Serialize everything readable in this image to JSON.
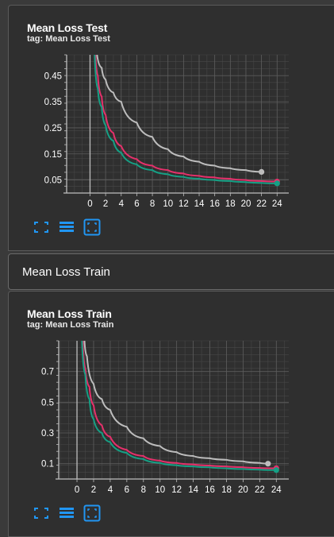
{
  "cards": [
    {
      "title": "Mean Loss Test",
      "tag": "tag: Mean Loss Test",
      "chart_data": {
        "type": "line",
        "xticks": [
          0,
          2,
          4,
          6,
          8,
          10,
          12,
          14,
          16,
          18,
          20,
          22,
          24
        ],
        "yticks": [
          "0.05",
          "0.15",
          "0.25",
          "0.35",
          "0.45"
        ],
        "xlim": [
          -3,
          25.5
        ],
        "ylim": [
          0.0,
          0.53
        ],
        "grid": true,
        "series": [
          {
            "color": "#bdbdbd",
            "x": [
              0.9,
              1.5,
              2,
              3,
              4,
              6,
              8,
              10,
              12,
              14,
              16,
              18,
              20,
              22
            ],
            "y": [
              0.53,
              0.48,
              0.435,
              0.385,
              0.35,
              0.27,
              0.215,
              0.168,
              0.14,
              0.12,
              0.105,
              0.095,
              0.088,
              0.081
            ],
            "end_marker": true
          },
          {
            "color": "#e6306b",
            "x": [
              0.7,
              1,
              1.5,
              2,
              3,
              4,
              6,
              8,
              10,
              12,
              14,
              16,
              18,
              20,
              22,
              24
            ],
            "y": [
              0.53,
              0.45,
              0.37,
              0.3,
              0.23,
              0.18,
              0.13,
              0.105,
              0.088,
              0.075,
              0.066,
              0.06,
              0.055,
              0.05,
              0.046,
              0.044
            ],
            "end_marker": true
          },
          {
            "color": "#16a085",
            "x": [
              0.6,
              1,
              1.5,
              2,
              3,
              4,
              6,
              8,
              10,
              12,
              14,
              16,
              18,
              20,
              22,
              24
            ],
            "y": [
              0.53,
              0.4,
              0.33,
              0.26,
              0.2,
              0.155,
              0.11,
              0.088,
              0.072,
              0.062,
              0.055,
              0.05,
              0.046,
              0.042,
              0.039,
              0.037
            ],
            "end_marker": true
          }
        ]
      }
    },
    {
      "title": "Mean Loss Train",
      "tag": "tag: Mean Loss Train",
      "chart_data": {
        "type": "line",
        "xticks": [
          0,
          2,
          4,
          6,
          8,
          10,
          12,
          14,
          16,
          18,
          20,
          22,
          24
        ],
        "yticks": [
          "0.1",
          "0.3",
          "0.5",
          "0.7"
        ],
        "xlim": [
          -2.2,
          25.5
        ],
        "ylim": [
          0.0,
          0.9
        ],
        "grid": true,
        "series": [
          {
            "color": "#bdbdbd",
            "x": [
              0.9,
              1.2,
              2,
              3,
              4,
              6,
              8,
              10,
              12,
              14,
              16,
              18,
              20,
              22,
              23
            ],
            "y": [
              0.9,
              0.8,
              0.62,
              0.52,
              0.45,
              0.34,
              0.265,
              0.215,
              0.175,
              0.15,
              0.135,
              0.125,
              0.115,
              0.105,
              0.1
            ],
            "end_marker": true
          },
          {
            "color": "#e6306b",
            "x": [
              0.7,
              1,
              1.5,
              2,
              3,
              4,
              6,
              8,
              10,
              12,
              14,
              16,
              18,
              20,
              22,
              24
            ],
            "y": [
              0.9,
              0.72,
              0.6,
              0.48,
              0.35,
              0.275,
              0.19,
              0.15,
              0.12,
              0.105,
              0.095,
              0.088,
              0.082,
              0.077,
              0.072,
              0.07
            ],
            "end_marker": true
          },
          {
            "color": "#16a085",
            "x": [
              0.6,
              1,
              1.5,
              2,
              3,
              4,
              6,
              8,
              10,
              12,
              14,
              16,
              18,
              20,
              22,
              24
            ],
            "y": [
              0.9,
              0.68,
              0.52,
              0.39,
              0.3,
              0.24,
              0.17,
              0.13,
              0.105,
              0.09,
              0.082,
              0.076,
              0.07,
              0.065,
              0.061,
              0.058
            ],
            "end_marker": true
          }
        ]
      }
    }
  ],
  "section": {
    "label": "Mean Loss Train"
  },
  "icons": [
    "fullscreen-icon",
    "data-table-icon",
    "fit-domain-icon"
  ],
  "colors": {
    "accent": "#2196f3",
    "gridline": "#555555",
    "axis": "#bdbdbd"
  }
}
